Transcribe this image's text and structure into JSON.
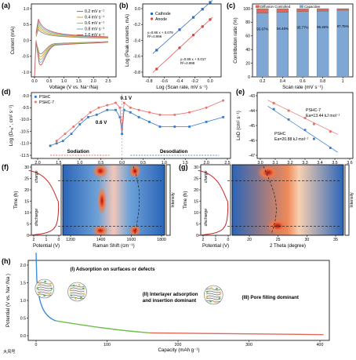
{
  "panels": {
    "a": {
      "letter": "(a)",
      "xlabel": "Voltage (V vs. Na⁺/Na)",
      "ylabel": "Current (mA)",
      "xticks": [
        "0.0",
        "0.5",
        "1.0",
        "1.5",
        "2.0",
        "2.5"
      ],
      "yticks": [
        "1.0",
        "0.5",
        "0.0",
        "-0.5",
        "-1.0"
      ],
      "legend": [
        "0.2 mV s⁻¹",
        "0.4 mV s⁻¹",
        "0.6 mV s⁻¹",
        "0.8 mV s⁻¹",
        "1.0 mV s⁻¹"
      ],
      "colors": [
        "#8c8c8c",
        "#e6a24a",
        "#a7c94f",
        "#7fb6d8",
        "#c85a5a"
      ]
    },
    "b": {
      "letter": "(b)",
      "xlabel": "Log (Scan rate, mV s⁻¹)",
      "ylabel": "Log (Peak currents, mA)",
      "xticks": [
        "-0.8",
        "-0.6",
        "-0.4",
        "-0.2",
        "0.0"
      ],
      "yticks": [
        "0.0",
        "-0.2",
        "-0.4",
        "-0.6",
        "-0.8"
      ],
      "legend": [
        "Cathode",
        "Anode"
      ],
      "cathode_eq": "y=0.86 x + 0.079",
      "cathode_r2": "R²=0.996",
      "anode_eq": "y=0.89 x + 0.017",
      "anode_r2": "R²=0.998",
      "colors": {
        "cathode": "#2e6db4",
        "anode": "#d9463e"
      }
    },
    "c": {
      "letter": "(c)",
      "xlabel": "Scan rate (mV s⁻¹)",
      "ylabel": "Contribution ratio (%)",
      "xticks": [
        "0.2",
        "0.4",
        "0.6",
        "0.8",
        "1"
      ],
      "yticks": [
        "100",
        "80",
        "60",
        "40",
        "20",
        "0"
      ],
      "legend": [
        "Diffusion Controlled",
        "Capacitive"
      ],
      "bar_labels": [
        "93.67%",
        "94.48%",
        "95.77%",
        "96.46%",
        "97.75%"
      ],
      "colors": {
        "diffusion": "#e0685a",
        "capacitive": "#7ea7d4"
      }
    },
    "d": {
      "letter": "(d)",
      "xlabel": "Potential (V vs. Na⁺/Na)",
      "ylabel": "Log (Dₙₐ⁺, cm² s⁻¹)",
      "xticks": [
        "2.0",
        "1.5",
        "1.0",
        "0.5",
        "0.0",
        "0.5",
        "1.0",
        "1.5",
        "2.0",
        "2.5"
      ],
      "yticks": [
        "-9.0",
        "-9.5",
        "-10.0",
        "-10.5",
        "-11.0",
        "-11.5"
      ],
      "legend": [
        "PSHC",
        "PSHC-7"
      ],
      "ann_01": "0.1 V",
      "ann_06": "0.6 V",
      "ann_sod": "Sodiation",
      "ann_desod": "Desodiation",
      "colors": {
        "pshc": "#3a7bc8",
        "pshc7": "#e8736b"
      }
    },
    "e": {
      "letter": "(e)",
      "xlabel": "1000/T (K⁻¹)",
      "ylabel": "LnD (cm² s⁻¹)",
      "xticks": [
        "3.0",
        "3.1",
        "3.2",
        "3.3",
        "3.4",
        "3.5",
        "3.6"
      ],
      "yticks": [
        "-43",
        "-44",
        "-45",
        "-46",
        "-47"
      ],
      "pshc7_name": "PSHC-7",
      "pshc7_ea": "Ea=13.44 kJ mol⁻¹",
      "pshc_name": "PSHC",
      "pshc_ea": "Ea=20.88 kJ mol⁻¹",
      "colors": {
        "pshc": "#3a7bc8",
        "pshc7": "#e8736b"
      }
    },
    "f": {
      "letter": "(f)",
      "time_label": "Time (h)",
      "potential_label": "Potential (V)",
      "raman_label": "Raman Shift (cm⁻¹)",
      "intensity": "Intensity",
      "charge": "charge",
      "discharge": "discharge",
      "yticks": [
        "30",
        "25",
        "20",
        "15",
        "10",
        "5",
        "0"
      ],
      "pticks": [
        "2",
        "1",
        "0"
      ],
      "xticks": [
        "1200",
        "1400",
        "1600",
        "1800"
      ]
    },
    "g": {
      "letter": "(g)",
      "time_label": "Time (h)",
      "potential_label": "Potential (V)",
      "theta_label": "2 Theta (degree)",
      "intensity": "Intensity",
      "charge": "charge",
      "discharge": "discharge",
      "yticks": [
        "30",
        "25",
        "20",
        "15",
        "10",
        "5",
        "0"
      ],
      "pticks": [
        "2",
        "1",
        "0"
      ],
      "xticks": [
        "20",
        "25",
        "30",
        "35"
      ]
    },
    "h": {
      "letter": "(h)",
      "xlabel": "Capacity (mAh g⁻¹)",
      "ylabel": "Potential (V vs. Na⁺/Na )",
      "xticks": [
        "0",
        "100",
        "200",
        "300",
        "400"
      ],
      "yticks": [
        "2.0",
        "1.5",
        "1.0",
        "0.5",
        "0.0"
      ],
      "region1": "(I) Adsorption on surfaces or defects",
      "region2a": "(II) Interlayer adsorption",
      "region2b": "and insertion dominant",
      "region3": "(III) Pore filling dominant",
      "colors": {
        "r1": "#3d8fd6",
        "r2": "#6dbf4b",
        "r3": "#e0685a"
      }
    }
  },
  "watermark": "大风号"
}
